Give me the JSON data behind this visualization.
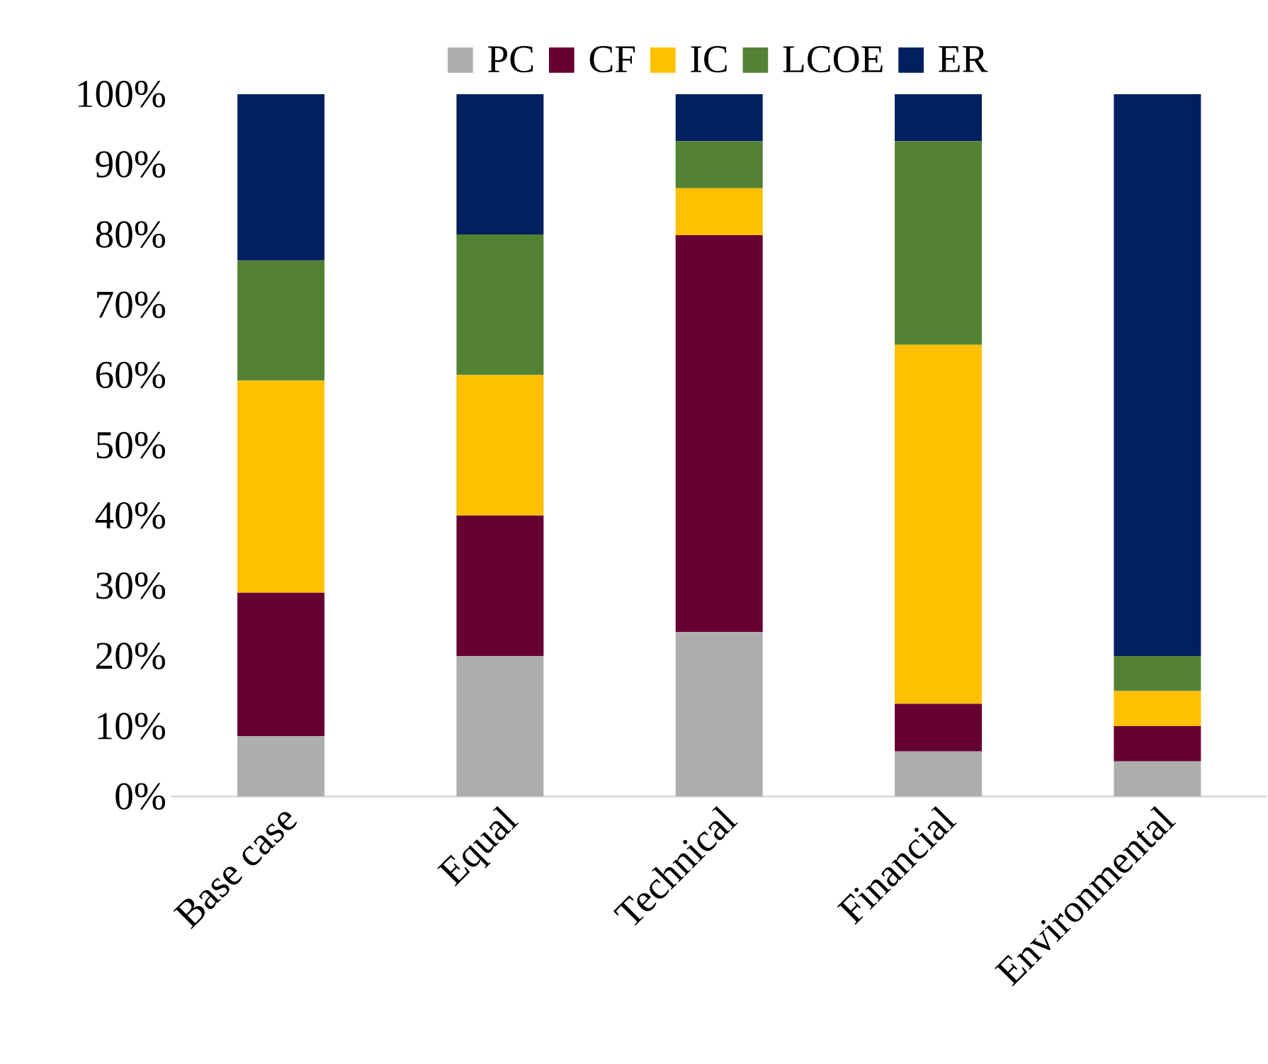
{
  "chart_data": {
    "type": "bar",
    "stacked": true,
    "categories": [
      "Base case",
      "Equal",
      "Technical",
      "Financial",
      "Environmental"
    ],
    "series": [
      {
        "name": "PC",
        "color": "#aeadac",
        "values": [
          8.6,
          20,
          23.4,
          6.4,
          5
        ]
      },
      {
        "name": "CF",
        "color": "#660033",
        "values": [
          20.4,
          20,
          56.5,
          6.8,
          5
        ]
      },
      {
        "name": "IC",
        "color": "#ffc000",
        "values": [
          30.2,
          20,
          6.7,
          51.1,
          5
        ]
      },
      {
        "name": "LCOE",
        "color": "#548235",
        "values": [
          17.1,
          20,
          6.7,
          29.0,
          5
        ]
      },
      {
        "name": "ER",
        "color": "#002060",
        "values": [
          23.7,
          20,
          6.7,
          6.7,
          80
        ]
      }
    ],
    "ylim": [
      0,
      100
    ],
    "yticks": [
      {
        "value": 0,
        "label": "0%"
      },
      {
        "value": 10,
        "label": "10%"
      },
      {
        "value": 20,
        "label": "20%"
      },
      {
        "value": 30,
        "label": "30%"
      },
      {
        "value": 40,
        "label": "40%"
      },
      {
        "value": 50,
        "label": "50%"
      },
      {
        "value": 60,
        "label": "60%"
      },
      {
        "value": 70,
        "label": "70%"
      },
      {
        "value": 80,
        "label": "80%"
      },
      {
        "value": 90,
        "label": "90%"
      },
      {
        "value": 100,
        "label": "100%"
      }
    ],
    "legend": "top",
    "grid": false
  }
}
